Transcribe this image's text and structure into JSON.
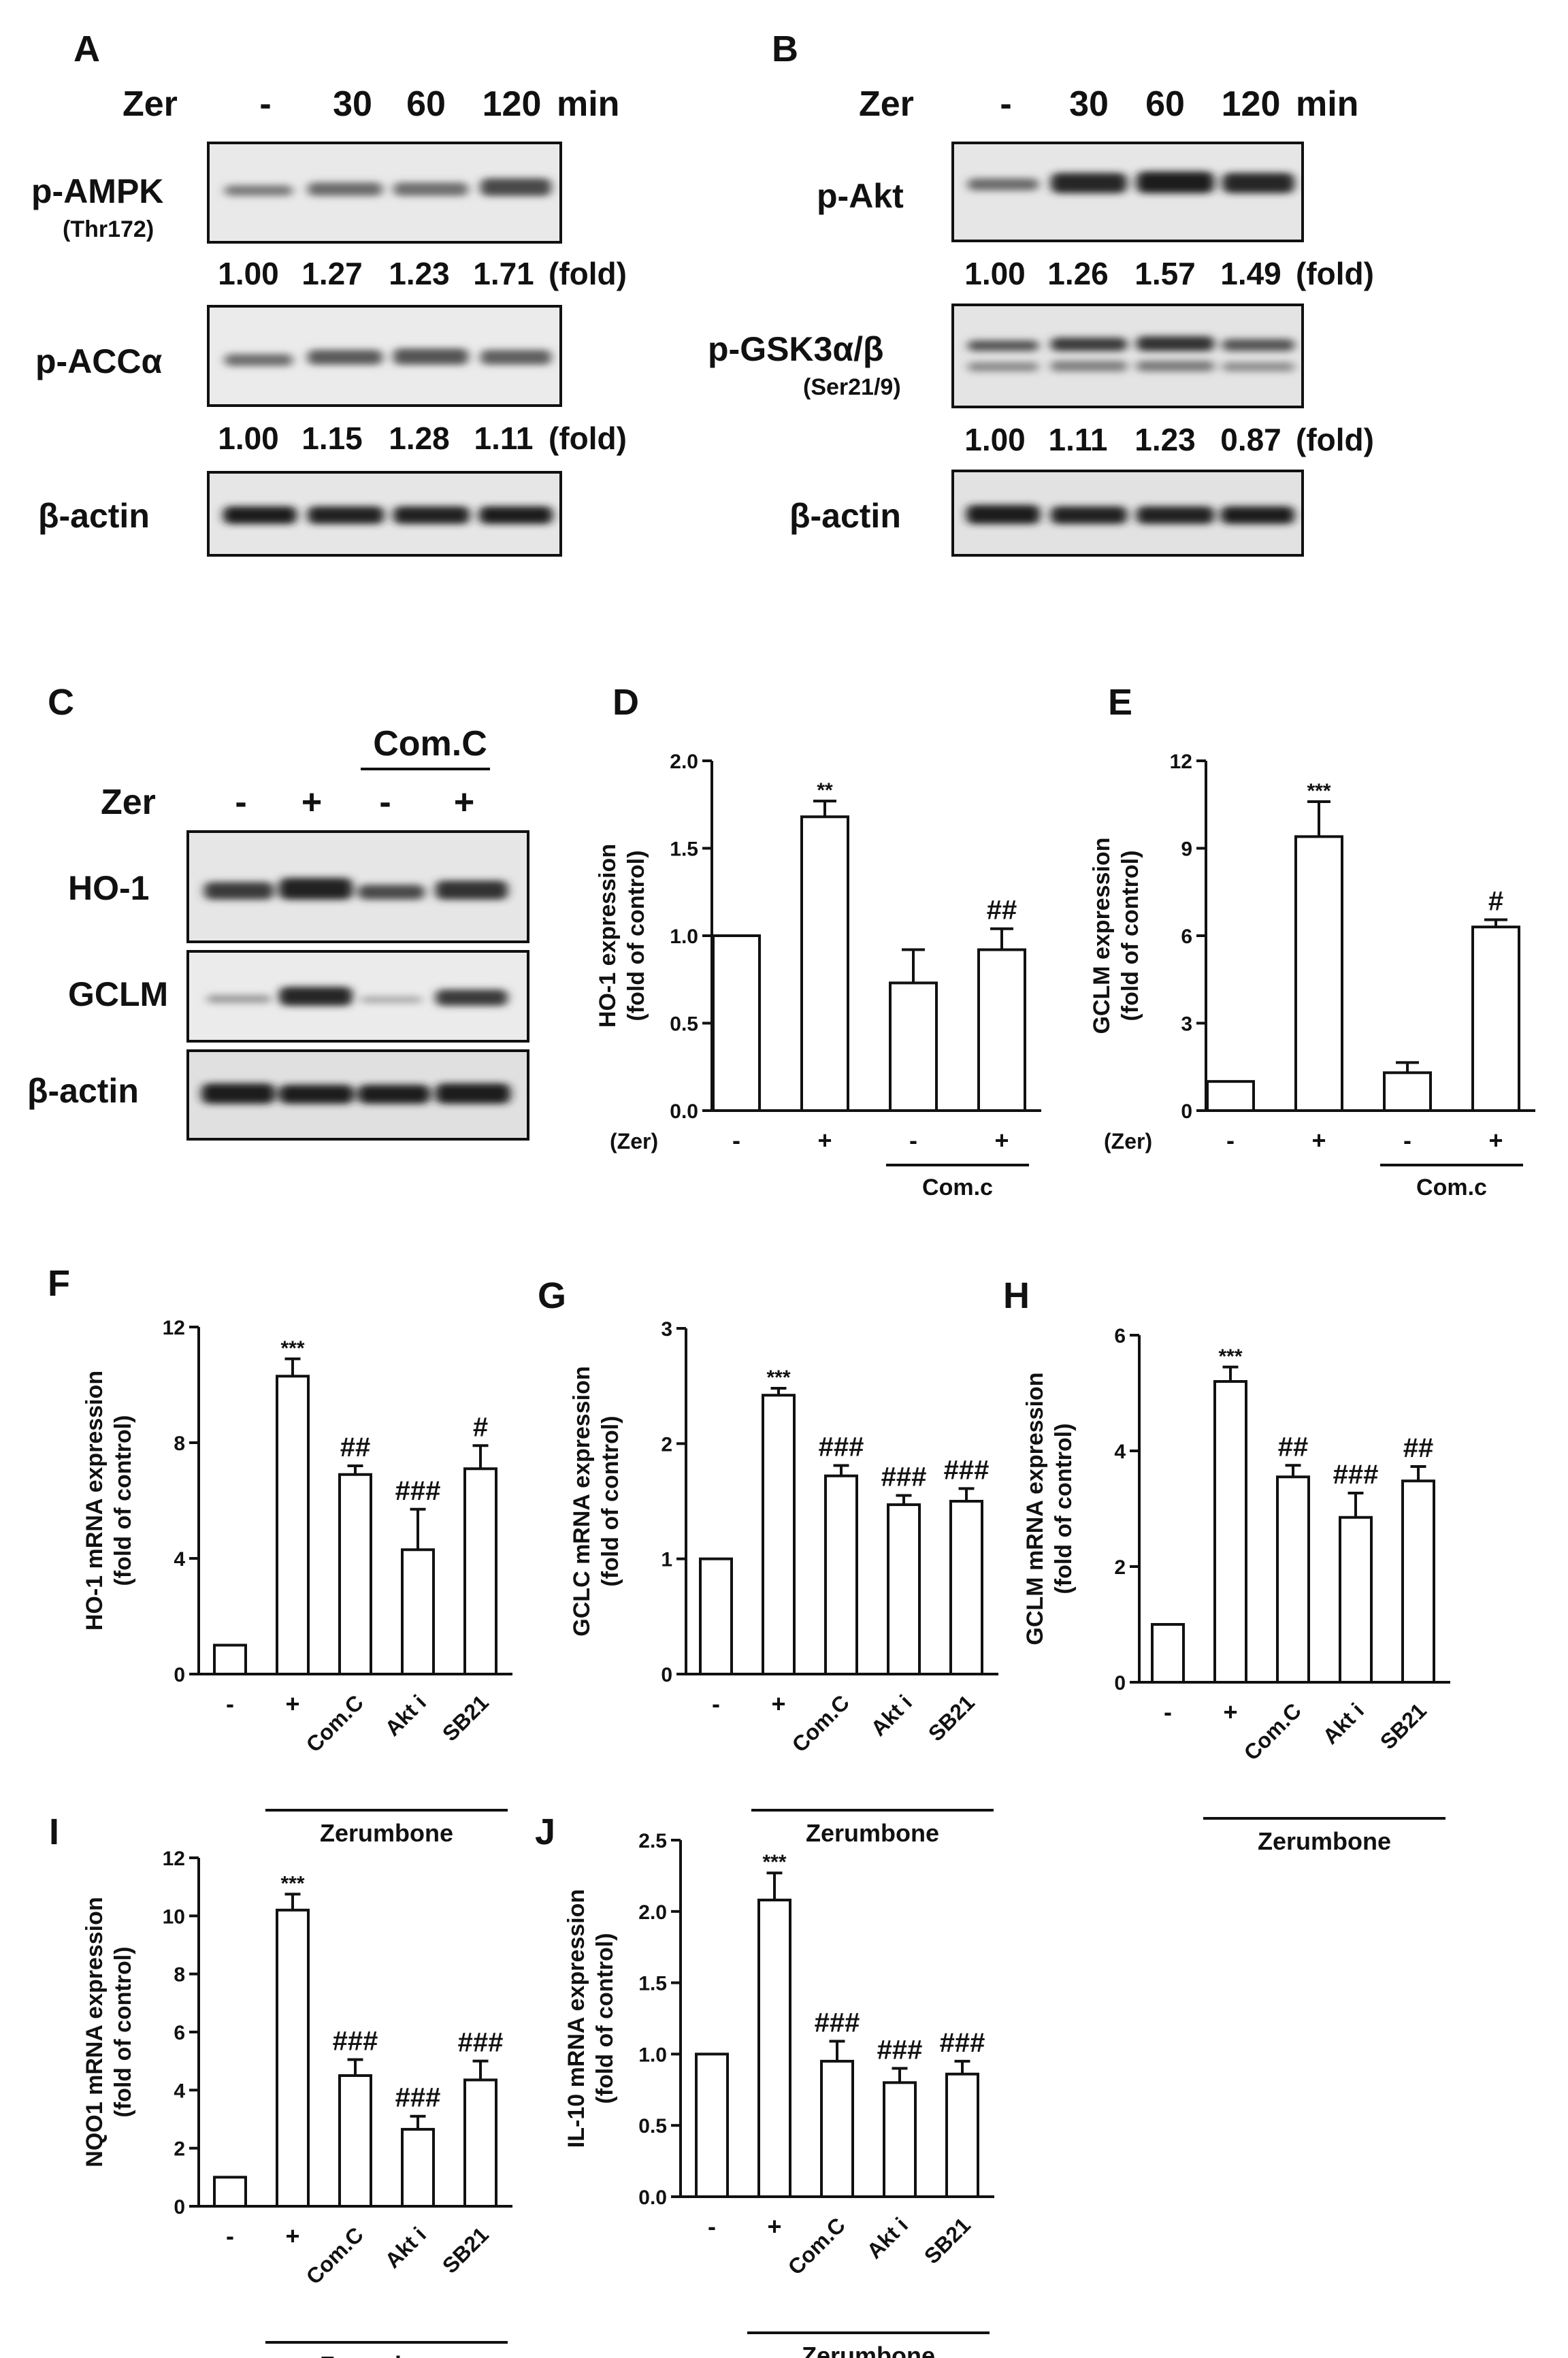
{
  "figure": {
    "A": {
      "letter": "A",
      "treatment": "Zer",
      "lanes": [
        "-",
        "30",
        "60",
        "120"
      ],
      "unit": "min",
      "blots": [
        {
          "label": "p-AMPK",
          "sublabel": "(Thr172)",
          "folds": [
            "1.00",
            "1.27",
            "1.23",
            "1.71"
          ]
        },
        {
          "label": "p-ACCα",
          "sublabel": "",
          "folds": [
            "1.00",
            "1.15",
            "1.28",
            "1.11"
          ]
        },
        {
          "label": "β-actin",
          "sublabel": "",
          "folds": []
        }
      ],
      "fold_label": "(fold)"
    },
    "B": {
      "letter": "B",
      "treatment": "Zer",
      "lanes": [
        "-",
        "30",
        "60",
        "120"
      ],
      "unit": "min",
      "blots": [
        {
          "label": "p-Akt",
          "sublabel": "",
          "folds": [
            "1.00",
            "1.26",
            "1.57",
            "1.49"
          ]
        },
        {
          "label": "p-GSK3α/β",
          "sublabel": "(Ser21/9)",
          "folds": [
            "1.00",
            "1.11",
            "1.23",
            "0.87"
          ]
        },
        {
          "label": "β-actin",
          "sublabel": "",
          "folds": []
        }
      ],
      "fold_label": "(fold)"
    },
    "C": {
      "letter": "C",
      "group": "Com.C",
      "treatment": "Zer",
      "lanes": [
        "-",
        "+",
        "-",
        "+"
      ],
      "blots": [
        {
          "label": "HO-1"
        },
        {
          "label": "GCLM"
        },
        {
          "label": "β-actin"
        }
      ]
    }
  },
  "chart_data": [
    {
      "panel": "D",
      "type": "bar",
      "ylabel": "HO-1 expression\n(fold of control)",
      "ylim": [
        0,
        2.0
      ],
      "yticks": [
        "0.0",
        "0.5",
        "1.0",
        "1.5",
        "2.0"
      ],
      "categories": [
        "-",
        "+",
        "-",
        "+"
      ],
      "values": [
        1.0,
        1.68,
        0.73,
        0.92
      ],
      "errors": [
        0,
        0.09,
        0.19,
        0.12
      ],
      "annotations": [
        "",
        "**",
        "",
        "##"
      ],
      "row_label": "(Zer)",
      "group_label": "Com.c"
    },
    {
      "panel": "E",
      "type": "bar",
      "ylabel": "GCLM expression\n(fold of control)",
      "ylim": [
        0,
        12
      ],
      "yticks": [
        "0",
        "3",
        "6",
        "9",
        "12"
      ],
      "categories": [
        "-",
        "+",
        "-",
        "+"
      ],
      "values": [
        1.0,
        9.4,
        1.3,
        6.3
      ],
      "errors": [
        0,
        1.2,
        0.35,
        0.25
      ],
      "annotations": [
        "",
        "***",
        "",
        "#"
      ],
      "row_label": "(Zer)",
      "group_label": "Com.c"
    },
    {
      "panel": "F",
      "type": "bar",
      "ylabel": "HO-1 mRNA expression\n(fold of control)",
      "ylim": [
        0,
        12
      ],
      "yticks": [
        "0",
        "4",
        "8",
        "12"
      ],
      "categories": [
        "-",
        "+",
        "Com.C",
        "Akt i",
        "SB21"
      ],
      "values": [
        1.0,
        10.3,
        6.9,
        4.3,
        7.1
      ],
      "errors": [
        0,
        0.6,
        0.3,
        1.4,
        0.8
      ],
      "annotations": [
        "",
        "***",
        "##",
        "###",
        "#"
      ],
      "group_label": "Zerumbone"
    },
    {
      "panel": "G",
      "type": "bar",
      "ylabel": "GCLC mRNA expression\n(fold of control)",
      "ylim": [
        0,
        3
      ],
      "yticks": [
        "0",
        "1",
        "2",
        "3"
      ],
      "categories": [
        "-",
        "+",
        "Com.C",
        "Akt i",
        "SB21"
      ],
      "values": [
        1.0,
        2.42,
        1.72,
        1.47,
        1.5
      ],
      "errors": [
        0,
        0.06,
        0.09,
        0.08,
        0.11
      ],
      "annotations": [
        "",
        "***",
        "###",
        "###",
        "###"
      ],
      "group_label": "Zerumbone"
    },
    {
      "panel": "H",
      "type": "bar",
      "ylabel": "GCLM mRNA expression\n(fold of control)",
      "ylim": [
        0,
        6
      ],
      "yticks": [
        "0",
        "2",
        "4",
        "6"
      ],
      "categories": [
        "-",
        "+",
        "Com.C",
        "Akt i",
        "SB21"
      ],
      "values": [
        1.0,
        5.2,
        3.55,
        2.85,
        3.48
      ],
      "errors": [
        0,
        0.25,
        0.2,
        0.42,
        0.25
      ],
      "annotations": [
        "",
        "***",
        "##",
        "###",
        "##"
      ],
      "group_label": "Zerumbone"
    },
    {
      "panel": "I",
      "type": "bar",
      "ylabel": "NQO1 mRNA expression\n(fold of control)",
      "ylim": [
        0,
        12
      ],
      "yticks": [
        "0",
        "2",
        "4",
        "6",
        "8",
        "10",
        "12"
      ],
      "categories": [
        "-",
        "+",
        "Com.C",
        "Akt i",
        "SB21"
      ],
      "values": [
        1.0,
        10.2,
        4.5,
        2.65,
        4.35
      ],
      "errors": [
        0,
        0.55,
        0.55,
        0.45,
        0.65
      ],
      "annotations": [
        "",
        "***",
        "###",
        "###",
        "###"
      ],
      "group_label": "Zerumbone"
    },
    {
      "panel": "J",
      "type": "bar",
      "ylabel": "IL-10 mRNA expression\n(fold of control)",
      "ylim": [
        0,
        2.5
      ],
      "yticks": [
        "0.0",
        "0.5",
        "1.0",
        "1.5",
        "2.0",
        "2.5"
      ],
      "categories": [
        "-",
        "+",
        "Com.C",
        "Akt i",
        "SB21"
      ],
      "values": [
        1.0,
        2.08,
        0.95,
        0.8,
        0.86
      ],
      "errors": [
        0,
        0.19,
        0.14,
        0.1,
        0.09
      ],
      "annotations": [
        "",
        "***",
        "###",
        "###",
        "###"
      ],
      "group_label": "Zerumbone"
    }
  ]
}
